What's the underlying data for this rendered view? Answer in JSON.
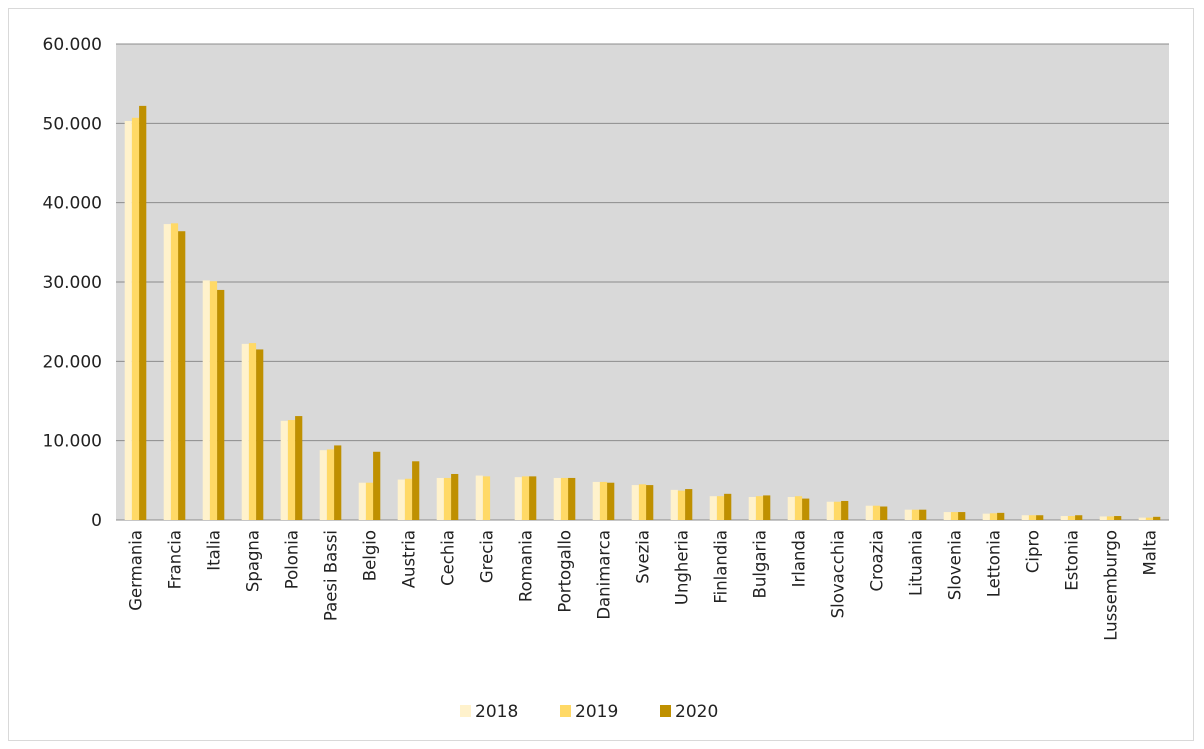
{
  "chart_data": {
    "type": "bar",
    "title": "",
    "xlabel": "",
    "ylabel": "",
    "ylim": [
      0,
      60000
    ],
    "yticks": [
      0,
      10000,
      20000,
      30000,
      40000,
      50000,
      60000
    ],
    "ytick_labels": [
      "0",
      "10.000",
      "20.000",
      "30.000",
      "40.000",
      "50.000",
      "60.000"
    ],
    "grid": true,
    "legend_position": "bottom",
    "plot_background": "#d9d9d9",
    "categories": [
      "Germania",
      "Francia",
      "Italia",
      "Spagna",
      "Polonia",
      "Paesi Bassi",
      "Belgio",
      "Austria",
      "Cechia",
      "Grecia",
      "Romania",
      "Portogallo",
      "Danimarca",
      "Svezia",
      "Ungheria",
      "Finlandia",
      "Bulgaria",
      "Irlanda",
      "Slovacchia",
      "Croazia",
      "Lituania",
      "Slovenia",
      "Lettonia",
      "Cipro",
      "Estonia",
      "Lussemburgo",
      "Malta"
    ],
    "series": [
      {
        "name": "2018",
        "color": "#fff2cc",
        "values": [
          50300,
          37300,
          30200,
          22200,
          12500,
          8800,
          4700,
          5100,
          5300,
          5600,
          5400,
          5300,
          4800,
          4400,
          3800,
          3000,
          2900,
          2900,
          2300,
          1800,
          1300,
          1000,
          800,
          600,
          500,
          450,
          300
        ]
      },
      {
        "name": "2019",
        "color": "#ffd966",
        "values": [
          50700,
          37400,
          30100,
          22300,
          12600,
          8900,
          4700,
          5200,
          5300,
          5500,
          5500,
          5300,
          4800,
          4500,
          3700,
          3000,
          3000,
          3000,
          2300,
          1800,
          1300,
          1000,
          850,
          600,
          500,
          450,
          300
        ]
      },
      {
        "name": "2020",
        "color": "#bf9000",
        "values": [
          52200,
          36400,
          29000,
          21500,
          13100,
          9400,
          8600,
          7400,
          5800,
          null,
          5500,
          5300,
          4700,
          4400,
          3900,
          3300,
          3100,
          2700,
          2400,
          1700,
          1300,
          1000,
          900,
          600,
          600,
          500,
          400
        ]
      }
    ]
  }
}
